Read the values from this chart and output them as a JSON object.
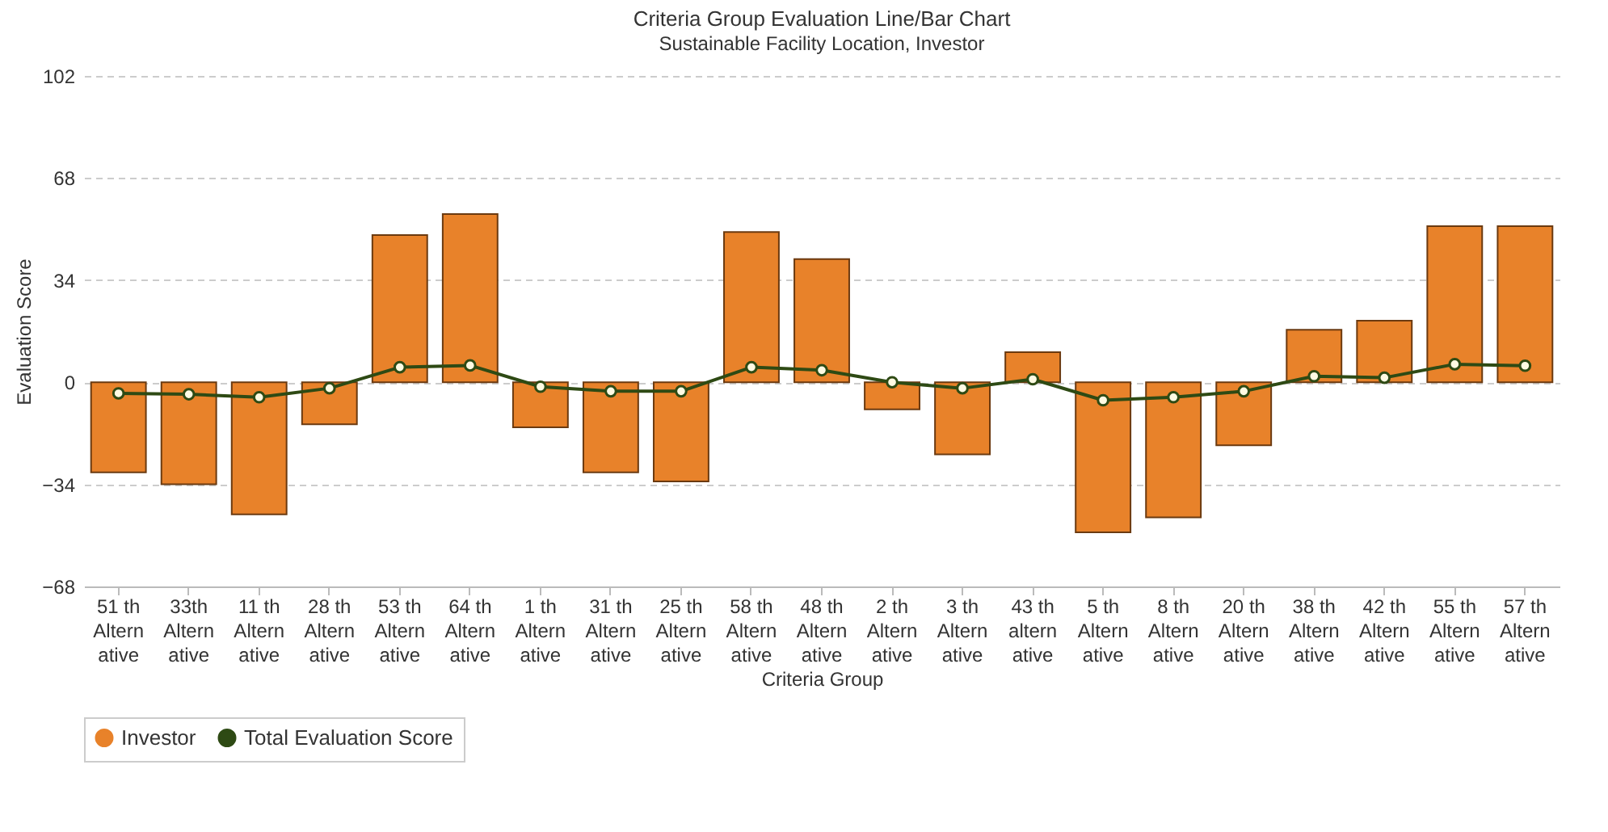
{
  "chart_data": {
    "type": "bar",
    "title": "Criteria Group Evaluation Line/Bar Chart",
    "subtitle": "Sustainable Facility Location, Investor",
    "xlabel": "Criteria Group",
    "ylabel": "Evaluation Score",
    "categories": [
      "51 th Alternative",
      "33th Alternative",
      "11 th Alternative",
      "28 th Alternative",
      "53 th Alternative",
      "64 th Alternative",
      "1 th Alternative",
      "31 th Alternative",
      "25 th Alternative",
      "58 th Alternative",
      "48 th Alternative",
      "2 th Alternative",
      "3 th Alternative",
      "43 th alternative",
      "5 th Alternative",
      "8 th Alternative",
      "20 th Alternative",
      "38 th Alternative",
      "42 th Alternative",
      "55 th Alternative",
      "57 th Alternative"
    ],
    "series": [
      {
        "name": "Investor",
        "color": "#e8822a",
        "values": [
          -30,
          -34,
          -44,
          -14,
          49,
          56,
          -15,
          -30,
          -33,
          50,
          41,
          -9,
          -24,
          10,
          -50,
          -45,
          -21,
          17.5,
          20.5,
          52,
          52
        ]
      },
      {
        "name": "Total Evaluation Score",
        "type": "line",
        "color": "#2e4a14",
        "marker": "circle",
        "values": [
          -3.7,
          -4,
          -5,
          -2,
          5,
          5.6,
          -1.5,
          -3,
          -3,
          5,
          4,
          0,
          -2,
          1,
          -6,
          -5,
          -3,
          2,
          1.5,
          6,
          5.5
        ]
      }
    ],
    "ylim": [
      -68,
      102
    ],
    "yticks": [
      102,
      68,
      34,
      0,
      -34,
      -68
    ],
    "grid": "y",
    "legend": "bottom"
  }
}
